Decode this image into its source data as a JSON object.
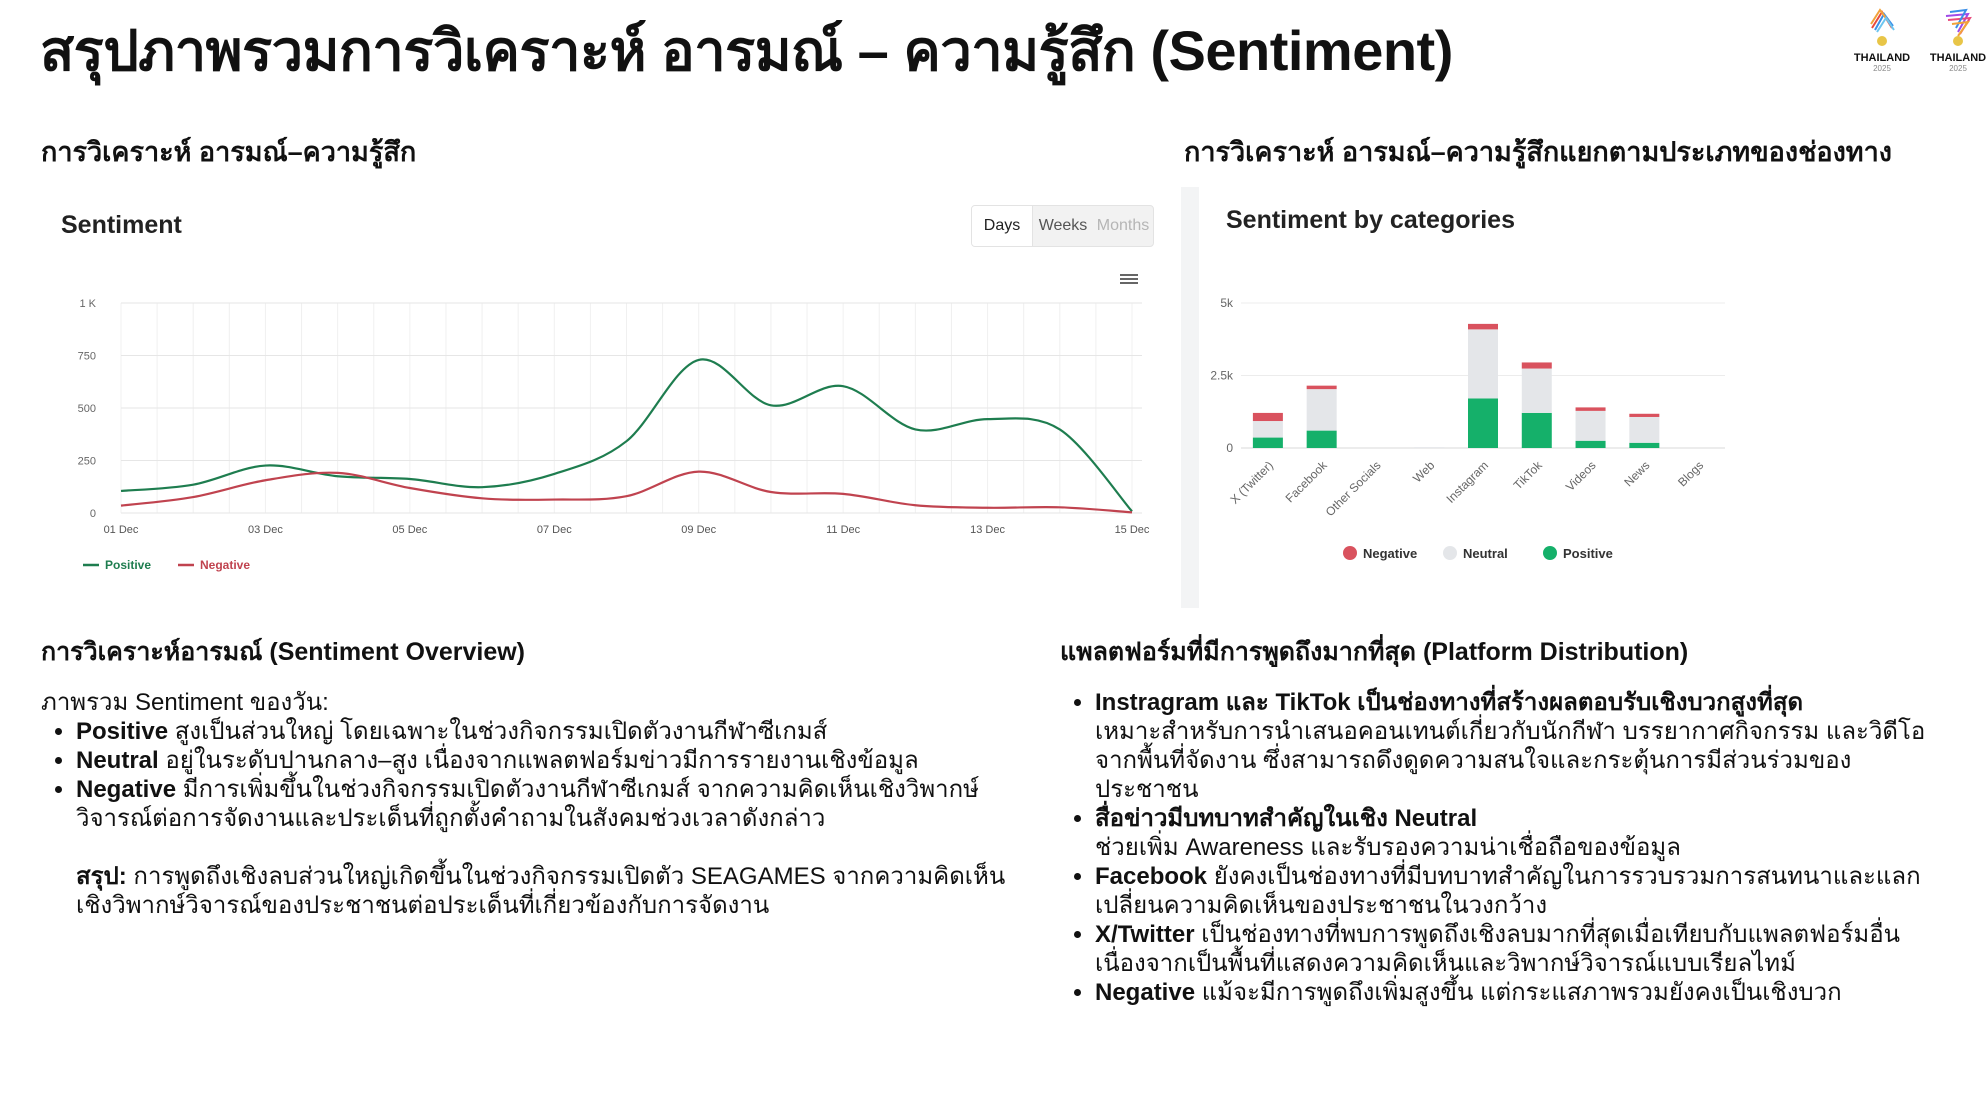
{
  "title": "สรุปภาพรวมการวิเคราะห์ อารมณ์ – ความรู้สึก (Sentiment)",
  "logos": [
    {
      "text": "THAILAND",
      "year": "2025"
    },
    {
      "text": "THAILAND",
      "year": "2025"
    }
  ],
  "left_section": {
    "heading": "การวิเคราะห์ อารมณ์–ความรู้สึก",
    "chart_title": "Sentiment",
    "range_buttons": [
      "Days",
      "Weeks",
      "Months"
    ],
    "active_range": "Days",
    "menu_icon": "hamburger-menu-icon"
  },
  "right_section": {
    "heading": "การวิเคราะห์ อารมณ์–ความรู้สึกแยกตามประเภทของช่องทาง",
    "chart_title": "Sentiment by categories"
  },
  "chart_data": [
    {
      "type": "line",
      "title": "Sentiment",
      "x": [
        "01 Dec",
        "02 Dec",
        "03 Dec",
        "04 Dec",
        "05 Dec",
        "06 Dec",
        "07 Dec",
        "08 Dec",
        "09 Dec",
        "10 Dec",
        "11 Dec",
        "12 Dec",
        "13 Dec",
        "14 Dec",
        "15 Dec"
      ],
      "x_tick_labels": [
        "01 Dec",
        "03 Dec",
        "05 Dec",
        "07 Dec",
        "09 Dec",
        "11 Dec",
        "13 Dec",
        "15 Dec"
      ],
      "y_tick_labels": [
        "0",
        "250",
        "500",
        "750",
        "1 K"
      ],
      "ylim": [
        0,
        1000
      ],
      "grid": true,
      "legend": "bottom-left",
      "series": [
        {
          "name": "Positive",
          "color": "#1e7d4f",
          "values": [
            105,
            135,
            226,
            175,
            162,
            123,
            186,
            342,
            729,
            513,
            604,
            398,
            447,
            398,
            8
          ]
        },
        {
          "name": "Negative",
          "color": "#c0434f",
          "values": [
            35,
            76,
            156,
            191,
            119,
            70,
            64,
            80,
            197,
            100,
            91,
            37,
            25,
            27,
            3
          ]
        }
      ]
    },
    {
      "type": "bar",
      "stacked": true,
      "title": "Sentiment by categories",
      "categories": [
        "X (Twitter)",
        "Facebook",
        "Other Socials",
        "Web",
        "Instagram",
        "TikTok",
        "Videos",
        "News",
        "Blogs"
      ],
      "y_tick_labels": [
        "0",
        "2.5k",
        "5k"
      ],
      "ylim": [
        0,
        5000
      ],
      "grid": true,
      "legend": "bottom",
      "series": [
        {
          "name": "Negative",
          "color": "#d9525e",
          "values": [
            280,
            120,
            0,
            0,
            190,
            210,
            120,
            110,
            0
          ]
        },
        {
          "name": "Neutral",
          "color": "#e4e6e9",
          "values": [
            570,
            1430,
            0,
            30,
            2380,
            1530,
            1030,
            890,
            0
          ]
        },
        {
          "name": "Positive",
          "color": "#15b06a",
          "values": [
            360,
            600,
            0,
            0,
            1710,
            1210,
            250,
            180,
            0
          ]
        }
      ]
    }
  ],
  "overview": {
    "heading": "การวิเคราะห์อารมณ์ (Sentiment Overview)",
    "intro": "ภาพรวม Sentiment ของวัน:",
    "bullets": [
      {
        "bold": "Positive",
        "text": " สูงเป็นส่วนใหญ่ โดยเฉพาะในช่วงกิจกรรมเปิดตัวงานกีฬาซีเกมส์"
      },
      {
        "bold": "Neutral",
        "text": " อยู่ในระดับปานกลาง–สูง เนื่องจากแพลตฟอร์มข่าวมีการรายงานเชิงข้อมูล"
      },
      {
        "bold": "Negative",
        "text": " มีการเพิ่มขึ้นในช่วงกิจกรรมเปิดตัวงานกีฬาซีเกมส์ จากความคิดเห็นเชิงวิพากษ์วิจารณ์ต่อการจัดงานและประเด็นที่ถูกตั้งคำถามในสังคมช่วงเวลาดังกล่าว"
      }
    ],
    "summary_label": "สรุป:",
    "summary_text": " การพูดถึงเชิงลบส่วนใหญ่เกิดขึ้นในช่วงกิจกรรมเปิดตัว SEAGAMES จากความคิดเห็นเชิงวิพากษ์วิจารณ์ของประชาชนต่อประเด็นที่เกี่ยวข้องกับการจัดงาน"
  },
  "platform": {
    "heading": "แพลตฟอร์มที่มีการพูดถึงมากที่สุด (Platform Distribution)",
    "bullets": [
      {
        "bold": "Instragram และ TikTok เป็นช่องทางที่สร้างผลตอบรับเชิงบวกสูงที่สุด",
        "text": "เหมาะสำหรับการนำเสนอคอนเทนต์เกี่ยวกับนักกีฬา บรรยากาศกิจกรรม และวิดีโอจากพื้นที่จัดงาน ซึ่งสามารถดึงดูดความสนใจและกระตุ้นการมีส่วนร่วมของประชาชน",
        "newline": true
      },
      {
        "bold": "สื่อข่าวมีบทบาทสำคัญในเชิง Neutral",
        "text": "ช่วยเพิ่ม Awareness และรับรองความน่าเชื่อถือของข้อมูล",
        "newline": true
      },
      {
        "bold": "Facebook",
        "text": " ยังคงเป็นช่องทางที่มีบทบาทสำคัญในการรวบรวมการสนทนาและแลกเปลี่ยนความคิดเห็นของประชาชนในวงกว้าง",
        "newline": false
      },
      {
        "bold": "X/Twitter",
        "text": " เป็นช่องทางที่พบการพูดถึงเชิงลบมากที่สุดเมื่อเทียบกับแพลตฟอร์มอื่นเนื่องจากเป็นพื้นที่แสดงความคิดเห็นและวิพากษ์วิจารณ์แบบเรียลไทม์",
        "newline": false
      },
      {
        "bold": "Negative",
        "text": " แม้จะมีการพูดถึงเพิ่มสูงขึ้น แต่กระแสภาพรวมยังคงเป็นเชิงบวก",
        "newline": false
      }
    ]
  }
}
